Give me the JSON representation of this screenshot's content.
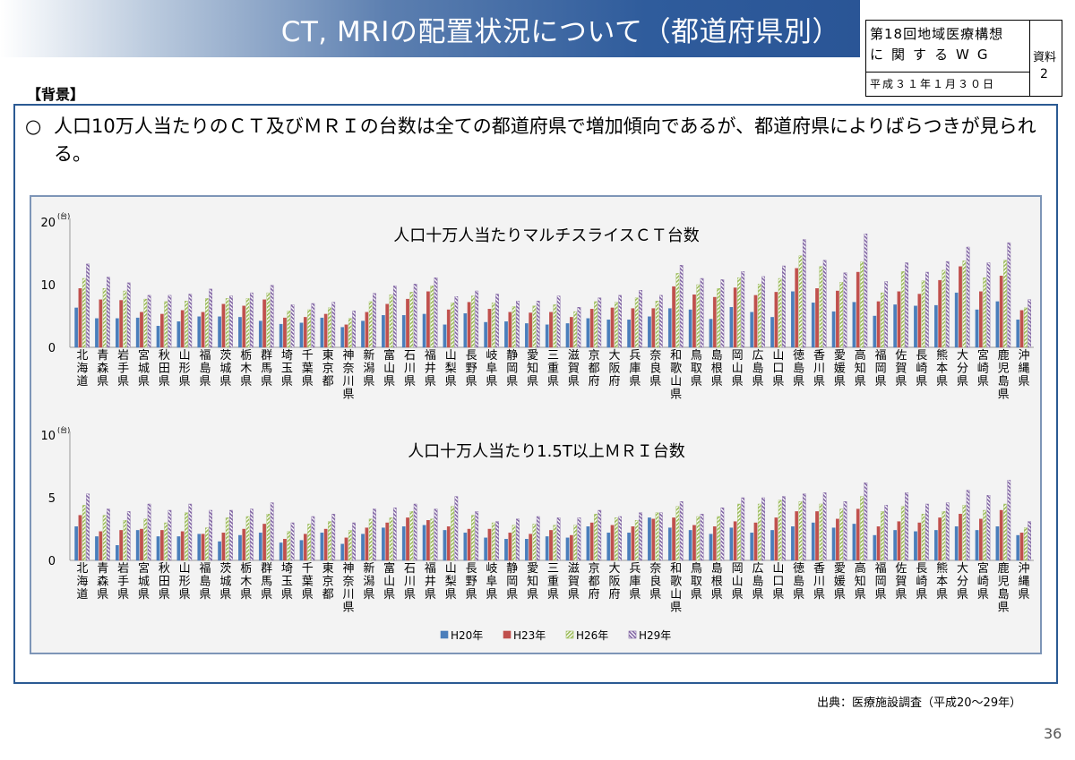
{
  "header": {
    "title": "CT, MRIの配置状況について（都道府県別）",
    "meeting_line1": "第18回地域医療構想",
    "meeting_line2": "に関するWG",
    "meeting_date": "平成３１年１月３０日",
    "doc_label": "資料",
    "doc_number": "2"
  },
  "section_label": "【背景】",
  "lead": {
    "bullet": "○",
    "text": "人口10万人当たりのＣＴ及びＭＲＩの台数は全ての都道府県で増加傾向であるが、都道府県によりばらつきが見られる。"
  },
  "source_note": "出典：医療施設調査（平成20～29年）",
  "page_number": "36",
  "colors": {
    "H20年": "#4a7ebb",
    "H23年": "#c0504d",
    "H26年": "#9bbb59",
    "H29年": "#8064a2",
    "accent": "#2b5a93"
  },
  "chart_data": [
    {
      "type": "bar",
      "title": "人口十万人当たりマルチスライスＣＴ台数",
      "unit": "(台)",
      "ylim": [
        0,
        20
      ],
      "yticks": [
        0,
        10,
        20
      ],
      "grid": false,
      "legend": "bottom",
      "categories": [
        "北海道",
        "青森県",
        "岩手県",
        "宮城県",
        "秋田県",
        "山形県",
        "福島県",
        "茨城県",
        "栃木県",
        "群馬県",
        "埼玉県",
        "千葉県",
        "東京都",
        "神奈川県",
        "新潟県",
        "富山県",
        "石川県",
        "福井県",
        "山梨県",
        "長野県",
        "岐阜県",
        "静岡県",
        "愛知県",
        "三重県",
        "滋賀県",
        "京都府",
        "大阪府",
        "兵庫県",
        "奈良県",
        "和歌山県",
        "鳥取県",
        "島根県",
        "岡山県",
        "広島県",
        "山口県",
        "徳島県",
        "香川県",
        "愛媛県",
        "高知県",
        "福岡県",
        "佐賀県",
        "長崎県",
        "熊本県",
        "大分県",
        "宮崎県",
        "鹿児島県",
        "沖縄県"
      ],
      "series": [
        {
          "name": "H20年",
          "values": [
            6.3,
            4.6,
            4.6,
            4.7,
            3.4,
            4.1,
            4.9,
            4.9,
            4.8,
            4.2,
            3.7,
            3.9,
            4.7,
            3.2,
            4.2,
            5.1,
            5.1,
            5.3,
            3.6,
            5.4,
            4.0,
            4.1,
            3.8,
            3.6,
            3.8,
            4.6,
            4.4,
            4.4,
            4.9,
            6.2,
            6.0,
            4.5,
            6.4,
            5.6,
            4.8,
            8.9,
            7.1,
            5.7,
            7.2,
            5.0,
            6.8,
            6.6,
            6.7,
            8.7,
            6.0,
            7.3,
            4.4
          ]
        },
        {
          "name": "H23年",
          "values": [
            9.4,
            7.6,
            7.5,
            5.6,
            5.3,
            5.9,
            5.6,
            6.9,
            6.6,
            7.6,
            4.7,
            4.8,
            5.3,
            3.6,
            5.6,
            6.9,
            7.7,
            8.9,
            6.0,
            7.2,
            6.1,
            5.6,
            5.5,
            5.6,
            4.8,
            6.1,
            6.3,
            6.2,
            6.2,
            9.7,
            8.4,
            8.0,
            9.5,
            8.3,
            8.8,
            12.6,
            9.4,
            9.0,
            12.0,
            7.3,
            8.9,
            8.5,
            10.7,
            12.9,
            8.9,
            11.4,
            5.9
          ]
        },
        {
          "name": "H26年",
          "values": [
            11.0,
            9.4,
            9.0,
            7.7,
            7.3,
            7.4,
            7.8,
            7.8,
            7.8,
            8.7,
            5.8,
            6.0,
            6.3,
            4.6,
            7.3,
            8.4,
            8.8,
            9.8,
            7.1,
            8.2,
            7.1,
            6.5,
            6.6,
            6.8,
            5.7,
            7.3,
            7.2,
            7.9,
            7.4,
            11.8,
            10.0,
            9.4,
            11.1,
            10.1,
            11.0,
            14.6,
            12.9,
            10.4,
            13.6,
            8.7,
            12.1,
            10.6,
            12.3,
            13.8,
            11.1,
            13.9,
            6.3
          ]
        },
        {
          "name": "H29年",
          "values": [
            13.3,
            11.2,
            10.3,
            8.3,
            8.3,
            8.5,
            9.3,
            8.2,
            8.7,
            9.9,
            6.8,
            7.0,
            7.2,
            5.8,
            8.6,
            9.8,
            10.1,
            11.1,
            8.1,
            9.0,
            8.5,
            7.4,
            7.4,
            8.2,
            6.4,
            7.9,
            8.3,
            9.1,
            8.3,
            13.1,
            11.0,
            10.8,
            12.1,
            11.3,
            13.0,
            17.2,
            13.9,
            11.9,
            18.1,
            10.5,
            13.5,
            12.0,
            13.7,
            16.0,
            13.5,
            16.7,
            7.6
          ]
        }
      ]
    },
    {
      "type": "bar",
      "title": "人口十万人当たり1.5T以上ＭＲＩ台数",
      "unit": "(台)",
      "ylim": [
        0,
        10
      ],
      "yticks": [
        0,
        5,
        10
      ],
      "grid": false,
      "legend": "bottom",
      "categories": [
        "北海道",
        "青森県",
        "岩手県",
        "宮城県",
        "秋田県",
        "山形県",
        "福島県",
        "茨城県",
        "栃木県",
        "群馬県",
        "埼玉県",
        "千葉県",
        "東京都",
        "神奈川県",
        "新潟県",
        "富山県",
        "石川県",
        "福井県",
        "山梨県",
        "長野県",
        "岐阜県",
        "静岡県",
        "愛知県",
        "三重県",
        "滋賀県",
        "京都府",
        "大阪府",
        "兵庫県",
        "奈良県",
        "和歌山県",
        "鳥取県",
        "島根県",
        "岡山県",
        "広島県",
        "山口県",
        "徳島県",
        "香川県",
        "愛媛県",
        "高知県",
        "福岡県",
        "佐賀県",
        "長崎県",
        "熊本県",
        "大分県",
        "宮崎県",
        "鹿児島県",
        "沖縄県"
      ],
      "series": [
        {
          "name": "H20年",
          "values": [
            2.7,
            1.9,
            1.2,
            2.4,
            1.9,
            1.9,
            2.1,
            1.5,
            2.0,
            2.2,
            1.4,
            1.6,
            2.2,
            1.3,
            2.1,
            2.6,
            2.7,
            2.8,
            2.4,
            2.2,
            1.8,
            1.7,
            1.7,
            1.9,
            1.8,
            2.7,
            2.2,
            2.2,
            3.4,
            2.6,
            2.4,
            2.1,
            2.6,
            2.2,
            2.4,
            2.7,
            3.0,
            2.6,
            2.9,
            2.0,
            2.4,
            2.3,
            2.4,
            2.7,
            2.4,
            2.7,
            2.0
          ]
        },
        {
          "name": "H23年",
          "values": [
            3.6,
            2.3,
            2.4,
            2.5,
            2.4,
            2.3,
            2.1,
            2.2,
            2.5,
            2.9,
            1.7,
            2.1,
            2.5,
            1.8,
            2.6,
            3.0,
            3.4,
            3.2,
            2.7,
            2.5,
            2.5,
            2.2,
            2.1,
            2.4,
            2.0,
            3.0,
            2.8,
            2.7,
            3.3,
            3.4,
            2.8,
            2.7,
            3.1,
            3.0,
            3.4,
            3.9,
            3.9,
            3.3,
            4.1,
            2.7,
            3.1,
            3.0,
            3.4,
            3.7,
            3.3,
            4.0,
            2.2
          ]
        },
        {
          "name": "H26年",
          "values": [
            4.4,
            3.6,
            3.2,
            3.3,
            3.0,
            3.8,
            2.6,
            3.4,
            3.5,
            3.7,
            2.3,
            2.9,
            3.1,
            2.4,
            3.3,
            3.4,
            3.9,
            3.3,
            4.3,
            3.6,
            3.0,
            2.8,
            2.9,
            2.8,
            2.8,
            3.7,
            3.4,
            3.2,
            3.8,
            4.3,
            3.5,
            3.5,
            4.5,
            4.5,
            4.8,
            4.7,
            4.5,
            4.1,
            5.1,
            3.9,
            4.3,
            3.7,
            3.9,
            4.4,
            4.0,
            4.5,
            2.6
          ]
        },
        {
          "name": "H29年",
          "values": [
            5.3,
            4.1,
            3.9,
            4.5,
            4.0,
            4.5,
            4.0,
            4.0,
            4.1,
            4.6,
            3.0,
            3.5,
            3.7,
            3.0,
            4.1,
            4.2,
            4.5,
            4.1,
            5.1,
            3.9,
            3.1,
            3.3,
            3.5,
            3.4,
            3.4,
            4.0,
            3.5,
            3.8,
            3.8,
            4.7,
            3.7,
            4.2,
            5.0,
            5.0,
            5.1,
            5.3,
            5.4,
            4.7,
            6.2,
            4.4,
            5.4,
            4.5,
            4.6,
            5.6,
            5.2,
            6.4,
            3.1
          ]
        }
      ]
    }
  ]
}
